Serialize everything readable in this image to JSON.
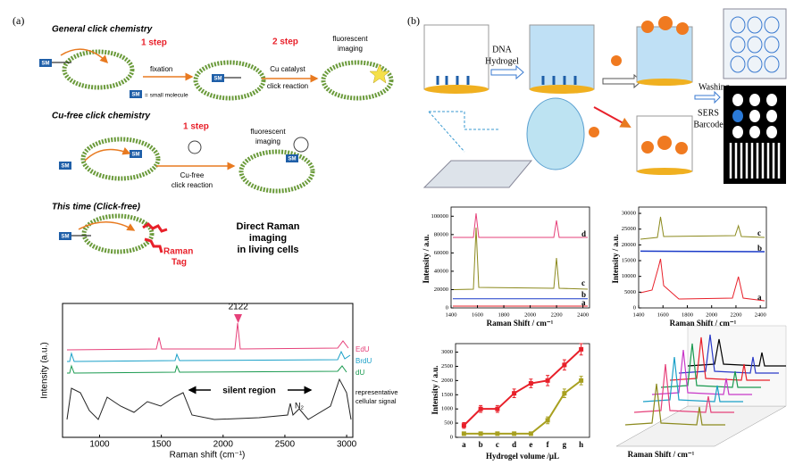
{
  "panel_a": {
    "label": "(a)",
    "sm": "SM",
    "general": {
      "title": "General click chemistry",
      "step1": "1 step",
      "fixation": "fixation",
      "step2": "2 step",
      "catalyst": "Cu catalyst",
      "reaction": "click reaction",
      "imaging": [
        "fluorescent",
        "imaging"
      ],
      "legend": "= small molecule"
    },
    "cufree": {
      "title": "Cu-free click chemistry",
      "step1": "1 step",
      "reaction": [
        "Cu-free",
        "click reaction"
      ],
      "imaging": [
        "fluorescent",
        "imaging"
      ]
    },
    "clickfree": {
      "title": "This time (Click-free)",
      "tag": [
        "Raman",
        "Tag"
      ],
      "headline": [
        "Direct Raman",
        "imaging",
        "in living cells"
      ]
    },
    "spectrum": {
      "peak_label": "2122",
      "series_labels": [
        "EdU",
        "BrdU",
        "dU"
      ],
      "silent": "silent region",
      "cellular": [
        "representative",
        "cellular signal"
      ],
      "n2": "N₂",
      "ylabel": "Intensity (a.u.)",
      "xlabel": "Raman shift (cm⁻¹)",
      "xlim": [
        700,
        3050
      ],
      "xticks": [
        1000,
        1500,
        2000,
        2500,
        3000
      ]
    }
  },
  "panel_b": {
    "label": "(b)",
    "schematic": {
      "hydrogel": [
        "DNA",
        "Hydrogel"
      ],
      "washing": "Washing",
      "sers": [
        "SERS",
        "Barcode"
      ]
    },
    "chart1": {
      "labels": [
        "d",
        "c",
        "b",
        "a"
      ],
      "ylabel": "Intensity / a.u.",
      "xlabel": "Raman Shift / cm⁻¹",
      "xlim": [
        1400,
        2450
      ],
      "xticks": [
        1400,
        1600,
        1800,
        2000,
        2200,
        2400
      ],
      "ylim": [
        0,
        110000
      ],
      "yticks": [
        0,
        20000,
        40000,
        60000,
        80000,
        100000
      ]
    },
    "chart2": {
      "labels": [
        "c",
        "b",
        "a"
      ],
      "ylabel": "Intensity / a.u.",
      "xlabel": "Raman Shift / cm⁻¹",
      "xlim": [
        1400,
        2450
      ],
      "xticks": [
        1400,
        1600,
        1800,
        2000,
        2200,
        2400
      ],
      "ylim": [
        0,
        32000
      ],
      "yticks": [
        0,
        5000,
        10000,
        15000,
        20000,
        25000,
        30000
      ]
    },
    "chart3": {
      "type": "line",
      "ylabel": "Intensity / a.u.",
      "xlabel": "Hydrogel volume /μL",
      "categories": [
        "a",
        "b",
        "c",
        "d",
        "e",
        "f",
        "g",
        "h"
      ],
      "ylim": [
        0,
        3300
      ],
      "yticks": [
        0,
        500,
        1000,
        1500,
        2000,
        2500,
        3000
      ],
      "series": [
        {
          "color": "#e8202a",
          "values": [
            420,
            1000,
            1000,
            1550,
            1900,
            2000,
            2550,
            3100
          ],
          "errors": [
            100,
            120,
            120,
            150,
            150,
            180,
            180,
            200
          ]
        },
        {
          "color": "#a8a020",
          "values": [
            130,
            130,
            130,
            130,
            130,
            600,
            1550,
            2000
          ],
          "errors": [
            60,
            60,
            60,
            60,
            60,
            120,
            150,
            150
          ]
        }
      ]
    },
    "chart4": {
      "xlabel": "Raman Shift / cm⁻¹"
    }
  }
}
